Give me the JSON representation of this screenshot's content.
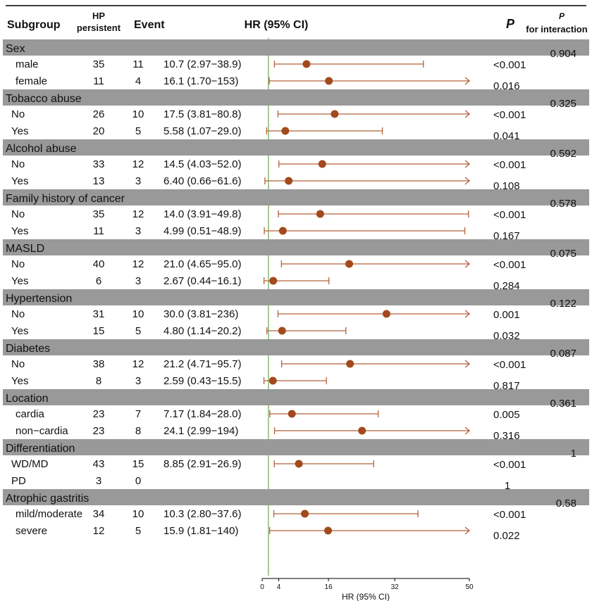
{
  "header": {
    "subgroup": "Subgroup",
    "hp_line1": "HP",
    "hp_line2": "persistent",
    "event": "Event",
    "hr": "HR (95% CI)",
    "p": "P",
    "pint_p": "P",
    "pint_label": "for interaction"
  },
  "groups": [
    {
      "name": "Sex",
      "p_interaction": "0.904",
      "rows": [
        {
          "label": "male",
          "n": "35",
          "event": "11",
          "hr_text": "10.7 (2.97−38.9)",
          "p": "<0.001"
        },
        {
          "label": "female",
          "n": "11",
          "event": "4",
          "hr_text": "16.1 (1.70−153)",
          "p": "0.016"
        }
      ]
    },
    {
      "name": "Tobacco abuse",
      "p_interaction": "0.325",
      "rows": [
        {
          "label": "No",
          "n": "26",
          "event": "10",
          "hr_text": "17.5 (3.81−80.8)",
          "p": "<0.001"
        },
        {
          "label": "Yes",
          "n": "20",
          "event": "5",
          "hr_text": "5.58 (1.07−29.0)",
          "p": "0.041"
        }
      ]
    },
    {
      "name": "Alcohol abuse",
      "p_interaction": "0.592",
      "rows": [
        {
          "label": "No",
          "n": "33",
          "event": "12",
          "hr_text": "14.5 (4.03−52.0)",
          "p": "<0.001"
        },
        {
          "label": "Yes",
          "n": "13",
          "event": "3",
          "hr_text": "6.40 (0.66−61.6)",
          "p": "0.108"
        }
      ]
    },
    {
      "name": "Family history of cancer",
      "p_interaction": "0.578",
      "rows": [
        {
          "label": "No",
          "n": "35",
          "event": "12",
          "hr_text": "14.0 (3.91−49.8)",
          "p": "<0.001"
        },
        {
          "label": "Yes",
          "n": "11",
          "event": "3",
          "hr_text": "4.99 (0.51−48.9)",
          "p": "0.167"
        }
      ]
    },
    {
      "name": "MASLD",
      "p_interaction": "0.075",
      "rows": [
        {
          "label": "No",
          "n": "40",
          "event": "12",
          "hr_text": "21.0 (4.65−95.0)",
          "p": "<0.001"
        },
        {
          "label": "Yes",
          "n": "6",
          "event": "3",
          "hr_text": "2.67 (0.44−16.1)",
          "p": "0.284"
        }
      ]
    },
    {
      "name": "Hypertension",
      "p_interaction": "0.122",
      "rows": [
        {
          "label": "No",
          "n": "31",
          "event": "10",
          "hr_text": "30.0 (3.81−236)",
          "p": "0.001"
        },
        {
          "label": "Yes",
          "n": "15",
          "event": "5",
          "hr_text": "4.80 (1.14−20.2)",
          "p": "0.032"
        }
      ]
    },
    {
      "name": "Diabetes",
      "p_interaction": "0.087",
      "rows": [
        {
          "label": "No",
          "n": "38",
          "event": "12",
          "hr_text": "21.2 (4.71−95.7)",
          "p": "<0.001"
        },
        {
          "label": "Yes",
          "n": "8",
          "event": "3",
          "hr_text": "2.59 (0.43−15.5)",
          "p": "0.817"
        }
      ]
    },
    {
      "name": "Location",
      "p_interaction": "0.361",
      "rows": [
        {
          "label": "cardia",
          "n": "23",
          "event": "7",
          "hr_text": "7.17 (1.84−28.0)",
          "p": "0.005"
        },
        {
          "label": "non−cardia",
          "n": "23",
          "event": "8",
          "hr_text": "24.1 (2.99−194)",
          "p": "0.316"
        }
      ]
    },
    {
      "name": "Differentiation",
      "p_interaction": "1",
      "rows": [
        {
          "label": "WD/MD",
          "n": "43",
          "event": "15",
          "hr_text": "8.85 (2.91−26.9)",
          "p": "<0.001"
        },
        {
          "label": "PD",
          "n": "3",
          "event": "0",
          "hr_text": "",
          "p": "1"
        }
      ]
    },
    {
      "name": "Atrophic gastritis",
      "p_interaction": "0.58",
      "rows": [
        {
          "label": "mild/moderate",
          "n": "34",
          "event": "10",
          "hr_text": "10.3 (2.80−37.6)",
          "p": "<0.001"
        },
        {
          "label": "severe",
          "n": "12",
          "event": "5",
          "hr_text": "15.9 (1.81−140)",
          "p": "0.022"
        }
      ]
    }
  ],
  "chart_data": {
    "type": "forest",
    "x_label": "HR (95% CI)",
    "x_ticks": [
      0,
      4,
      16,
      32,
      50
    ],
    "xlim": [
      0,
      50
    ],
    "reference_line": 1,
    "series": [
      {
        "subgroup": "Sex: male",
        "hr": 10.7,
        "lower": 2.97,
        "upper": 38.9
      },
      {
        "subgroup": "Sex: female",
        "hr": 16.1,
        "lower": 1.7,
        "upper": 153
      },
      {
        "subgroup": "Tobacco abuse: No",
        "hr": 17.5,
        "lower": 3.81,
        "upper": 80.8
      },
      {
        "subgroup": "Tobacco abuse: Yes",
        "hr": 5.58,
        "lower": 1.07,
        "upper": 29.0
      },
      {
        "subgroup": "Alcohol abuse: No",
        "hr": 14.5,
        "lower": 4.03,
        "upper": 52.0
      },
      {
        "subgroup": "Alcohol abuse: Yes",
        "hr": 6.4,
        "lower": 0.66,
        "upper": 61.6
      },
      {
        "subgroup": "Family history of cancer: No",
        "hr": 14.0,
        "lower": 3.91,
        "upper": 49.8
      },
      {
        "subgroup": "Family history of cancer: Yes",
        "hr": 4.99,
        "lower": 0.51,
        "upper": 48.9
      },
      {
        "subgroup": "MASLD: No",
        "hr": 21.0,
        "lower": 4.65,
        "upper": 95.0
      },
      {
        "subgroup": "MASLD: Yes",
        "hr": 2.67,
        "lower": 0.44,
        "upper": 16.1
      },
      {
        "subgroup": "Hypertension: No",
        "hr": 30.0,
        "lower": 3.81,
        "upper": 236
      },
      {
        "subgroup": "Hypertension: Yes",
        "hr": 4.8,
        "lower": 1.14,
        "upper": 20.2
      },
      {
        "subgroup": "Diabetes: No",
        "hr": 21.2,
        "lower": 4.71,
        "upper": 95.7
      },
      {
        "subgroup": "Diabetes: Yes",
        "hr": 2.59,
        "lower": 0.43,
        "upper": 15.5
      },
      {
        "subgroup": "Location: cardia",
        "hr": 7.17,
        "lower": 1.84,
        "upper": 28.0
      },
      {
        "subgroup": "Location: non-cardia",
        "hr": 24.1,
        "lower": 2.99,
        "upper": 194
      },
      {
        "subgroup": "Differentiation: WD/MD",
        "hr": 8.85,
        "lower": 2.91,
        "upper": 26.9
      },
      {
        "subgroup": "Differentiation: PD",
        "hr": null,
        "lower": null,
        "upper": null
      },
      {
        "subgroup": "Atrophic gastritis: mild/moderate",
        "hr": 10.3,
        "lower": 2.8,
        "upper": 37.6
      },
      {
        "subgroup": "Atrophic gastritis: severe",
        "hr": 15.9,
        "lower": 1.81,
        "upper": 140
      }
    ]
  },
  "colors": {
    "band": "#999999",
    "point": "#a24a1d",
    "ci_line": "#b5623a",
    "reference_line": "#6aa84f",
    "text": "#111111"
  }
}
